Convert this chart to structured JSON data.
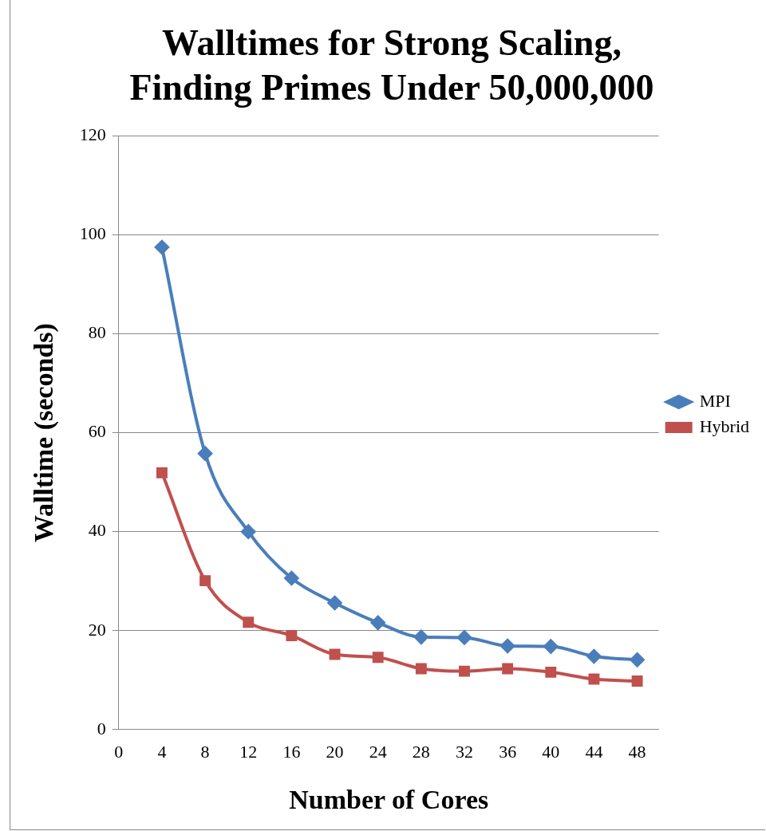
{
  "chart_data": {
    "type": "line",
    "title": "Walltimes for Strong Scaling, Finding Primes Under 50,000,000",
    "xlabel": "Number of Cores",
    "ylabel": "Walltime (seconds)",
    "x": [
      4,
      8,
      12,
      16,
      20,
      24,
      28,
      32,
      36,
      40,
      44,
      48
    ],
    "series": [
      {
        "name": "MPI",
        "color": "#4a7ebb",
        "marker": "diamond",
        "values": [
          97.5,
          55.8,
          40,
          30.6,
          25.6,
          21.6,
          18.7,
          18.6,
          16.9,
          16.8,
          14.8,
          14.1
        ]
      },
      {
        "name": "Hybrid",
        "color": "#c0504d",
        "marker": "square",
        "values": [
          51.9,
          30.1,
          21.7,
          19,
          15.2,
          14.6,
          12.3,
          11.8,
          12.3,
          11.6,
          10.2,
          9.8
        ]
      }
    ],
    "xlim": [
      0,
      50
    ],
    "xticks": [
      0,
      4,
      8,
      12,
      16,
      20,
      24,
      28,
      32,
      36,
      40,
      44,
      48
    ],
    "ylim": [
      0,
      120
    ],
    "yticks": [
      0,
      20,
      40,
      60,
      80,
      100,
      120
    ],
    "grid": "y",
    "legend": "right"
  }
}
